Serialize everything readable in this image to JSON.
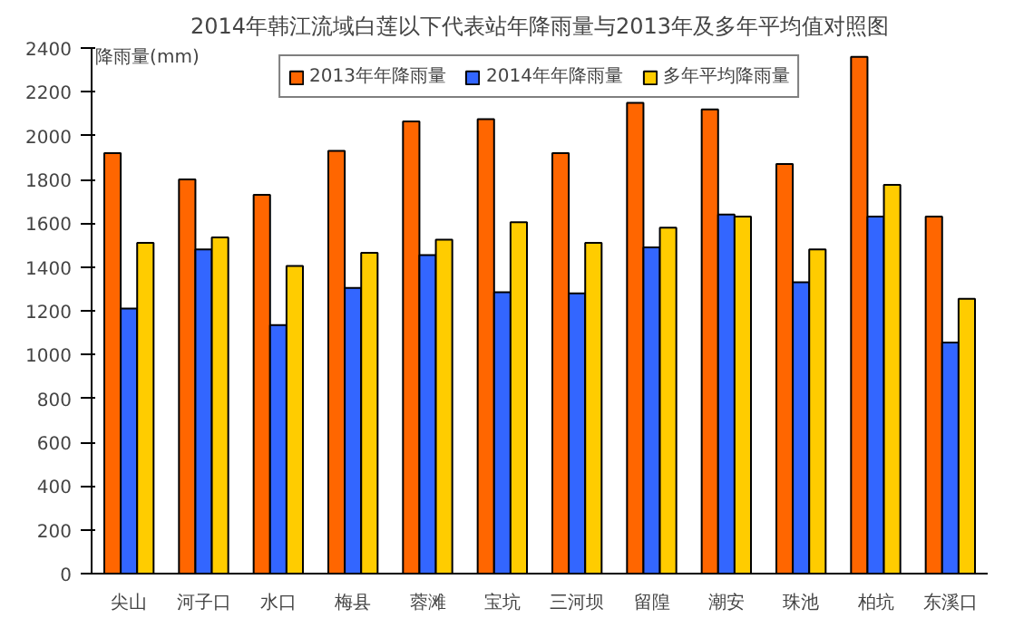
{
  "chart_data": {
    "type": "bar",
    "title": "2014年韩江流域白莲以下代表站年降雨量与2013年及多年平均值对照图",
    "ylabel": "降雨量(mm)",
    "categories": [
      "尖山",
      "河子口",
      "水口",
      "梅县",
      "蓉滩",
      "宝坑",
      "三河坝",
      "留隍",
      "潮安",
      "珠池",
      "柏坑",
      "东溪口"
    ],
    "series": [
      {
        "name": "2013年年降雨量",
        "color": "#ff6600",
        "values": [
          1920,
          1800,
          1730,
          1930,
          2065,
          2075,
          1920,
          2150,
          2120,
          1870,
          2360,
          1630
        ]
      },
      {
        "name": "2014年年降雨量",
        "color": "#3366ff",
        "values": [
          1210,
          1480,
          1135,
          1305,
          1455,
          1285,
          1280,
          1490,
          1640,
          1330,
          1630,
          1055
        ]
      },
      {
        "name": "多年平均降雨量",
        "color": "#ffcc00",
        "values": [
          1510,
          1535,
          1405,
          1465,
          1525,
          1605,
          1510,
          1580,
          1630,
          1480,
          1775,
          1255
        ]
      }
    ],
    "ylim": [
      0,
      2400
    ],
    "yticks": [
      0,
      200,
      400,
      600,
      800,
      1000,
      1200,
      1400,
      1600,
      1800,
      2000,
      2200,
      2400
    ],
    "grid": false,
    "legend": "top"
  }
}
